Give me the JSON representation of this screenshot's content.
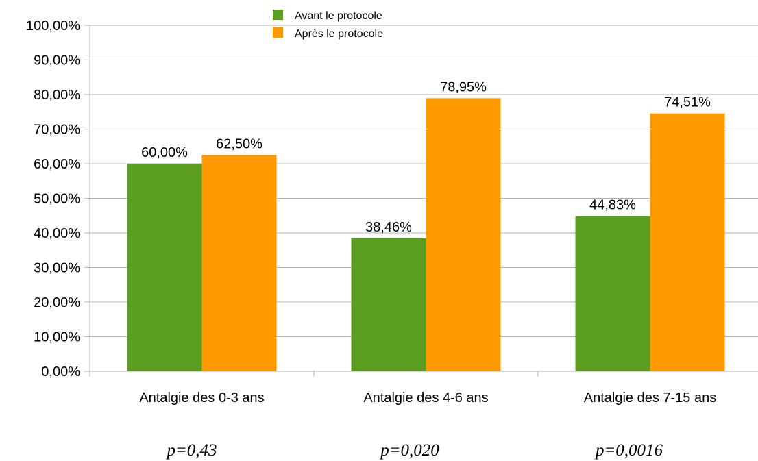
{
  "chart_data": {
    "type": "bar",
    "categories": [
      "Antalgie des 0-3 ans",
      "Antalgie des 4-6 ans",
      "Antalgie des 7-15 ans"
    ],
    "series": [
      {
        "name": "Avant le protocole",
        "values": [
          60.0,
          38.46,
          44.83
        ],
        "labels": [
          "60,00%",
          "38,46%",
          "44,83%"
        ],
        "color": "#5b9e1f"
      },
      {
        "name": "Après le protocole",
        "values": [
          62.5,
          78.95,
          74.51
        ],
        "labels": [
          "62,50%",
          "78,95%",
          "74,51%"
        ],
        "color": "#ff9900"
      }
    ],
    "ylim": [
      0,
      100
    ],
    "yticks": [
      "0,00%",
      "10,00%",
      "20,00%",
      "30,00%",
      "40,00%",
      "50,00%",
      "60,00%",
      "70,00%",
      "80,00%",
      "90,00%",
      "100,00%"
    ],
    "grid": true,
    "legend": "top-center",
    "annotations": [
      "p=0,43",
      "p=0,020",
      "p=0,0016"
    ]
  }
}
